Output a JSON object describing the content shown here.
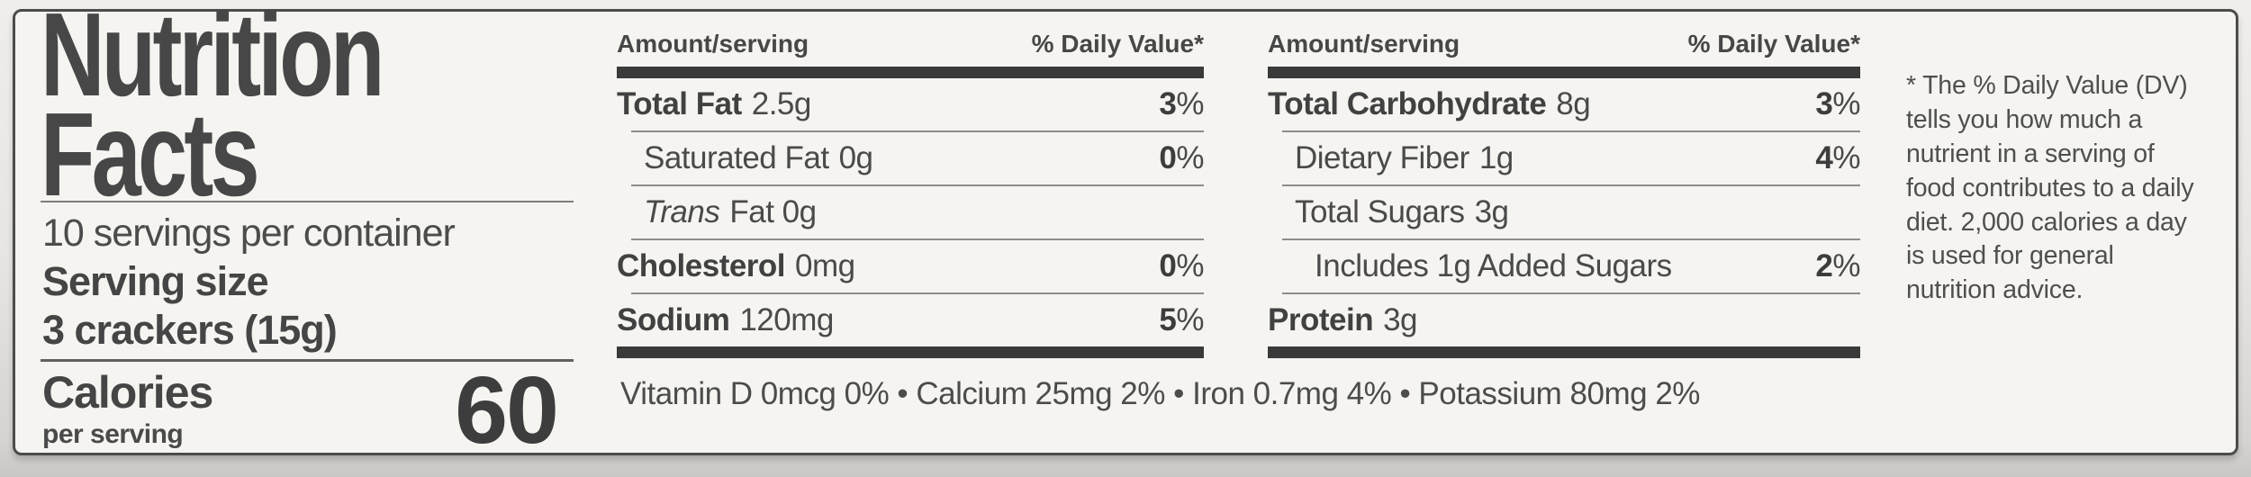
{
  "label": {
    "title": "Nutrition Facts",
    "servings_per_container": "10 servings per container",
    "serving_size_label": "Serving size",
    "serving_size_value": "3 crackers (15g)",
    "calories_label": "Calories",
    "calories_sublabel": "per serving",
    "calories_value": "60",
    "columns": [
      {
        "header_left": "Amount/serving",
        "header_right": "% Daily Value*",
        "rows": [
          {
            "name": "Total Fat",
            "amount": "2.5g",
            "dv_num": "3",
            "dv_sign": "%"
          },
          {
            "name": "Saturated Fat",
            "amount": "0g",
            "dv_num": "0",
            "dv_sign": "%"
          },
          {
            "name": "Trans",
            "amount": "Fat 0g",
            "dv_num": "",
            "dv_sign": ""
          },
          {
            "name": "Cholesterol",
            "amount": "0mg",
            "dv_num": "0",
            "dv_sign": "%"
          },
          {
            "name": "Sodium",
            "amount": "120mg",
            "dv_num": "5",
            "dv_sign": "%"
          }
        ]
      },
      {
        "header_left": "Amount/serving",
        "header_right": "% Daily Value*",
        "rows": [
          {
            "name": "Total Carbohydrate",
            "amount": "8g",
            "dv_num": "3",
            "dv_sign": "%"
          },
          {
            "name": "Dietary Fiber",
            "amount": "1g",
            "dv_num": "4",
            "dv_sign": "%"
          },
          {
            "name": "Total Sugars",
            "amount": "3g",
            "dv_num": "",
            "dv_sign": ""
          },
          {
            "name": "Includes 1g Added Sugars",
            "amount": "",
            "dv_num": "2",
            "dv_sign": "%"
          },
          {
            "name": "Protein",
            "amount": "3g",
            "dv_num": "",
            "dv_sign": ""
          }
        ]
      }
    ],
    "micronutrients": "Vitamin D 0mcg 0% • Calcium 25mg 2% • Iron 0.7mg 4% • Potassium 80mg 2%",
    "footnote": "* The % Daily Value (DV) tells you how much a nutrient in a serving of food contributes to a daily diet.  2,000 calories a day is used for general nutrition advice."
  }
}
